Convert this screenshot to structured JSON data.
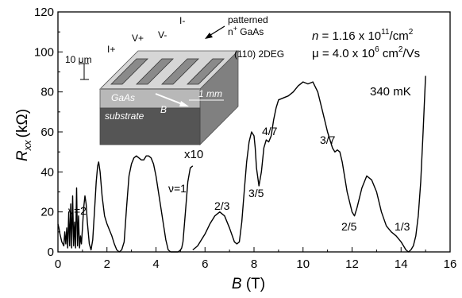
{
  "chart_data": {
    "type": "line",
    "xlabel_var": "B",
    "xlabel_unit": "(T)",
    "ylabel_var": "R",
    "ylabel_sub": "xx",
    "ylabel_unit": "(kΩ)",
    "xlim": [
      0,
      16
    ],
    "ylim": [
      0,
      120
    ],
    "xticks": [
      0,
      2,
      4,
      6,
      8,
      10,
      12,
      14,
      16
    ],
    "yticks": [
      0,
      20,
      40,
      60,
      80,
      100,
      120
    ],
    "grid": false,
    "series": [
      {
        "scale_label": "x10",
        "x": [
          0.0,
          0.04,
          0.08,
          0.12,
          0.16,
          0.2,
          0.24,
          0.28,
          0.32,
          0.36,
          0.4,
          0.44,
          0.48,
          0.52,
          0.56,
          0.6,
          0.64,
          0.68,
          0.72,
          0.76,
          0.8,
          0.84,
          0.88,
          0.92,
          0.96,
          1.0,
          1.05,
          1.1,
          1.15,
          1.2,
          1.28,
          1.35,
          1.42,
          1.5,
          1.56,
          1.62,
          1.66,
          1.72,
          1.8,
          1.9,
          2.0,
          2.1,
          2.2,
          2.3,
          2.4,
          2.5,
          2.6,
          2.7,
          2.8,
          2.9,
          3.0,
          3.1,
          3.2,
          3.3,
          3.4,
          3.5,
          3.6,
          3.7,
          3.8,
          3.9,
          4.0,
          4.1,
          4.2,
          4.3,
          4.4,
          4.5,
          4.6,
          4.7,
          4.8,
          4.9,
          5.0,
          5.05,
          5.1,
          5.2,
          5.3,
          5.4,
          5.5
        ],
        "y": [
          14,
          12,
          9,
          7,
          5,
          4,
          3,
          10,
          4,
          12,
          2,
          20,
          3,
          24,
          2,
          28,
          3,
          15,
          2,
          32,
          3,
          18,
          2,
          8,
          4,
          12,
          22,
          28,
          24,
          15,
          4,
          1,
          6,
          22,
          35,
          43,
          45,
          40,
          28,
          18,
          14,
          11,
          8,
          4,
          1,
          0,
          1,
          5,
          22,
          38,
          44,
          47,
          48,
          47,
          46,
          46,
          48,
          48,
          47,
          44,
          38,
          30,
          22,
          14,
          6,
          1,
          0,
          0,
          0,
          0,
          1,
          2,
          5,
          20,
          35,
          42,
          43
        ]
      },
      {
        "scale_label": "",
        "x": [
          5.5,
          5.6,
          5.7,
          5.8,
          5.9,
          6.0,
          6.2,
          6.4,
          6.6,
          6.8,
          7.0,
          7.2,
          7.3,
          7.4,
          7.5,
          7.6,
          7.7,
          7.8,
          7.9,
          8.0,
          8.05,
          8.1,
          8.2,
          8.3,
          8.4,
          8.5,
          8.6,
          8.7,
          8.8,
          8.9,
          9.0,
          9.2,
          9.4,
          9.6,
          9.8,
          10.0,
          10.2,
          10.4,
          10.6,
          10.8,
          11.0,
          11.2,
          11.3,
          11.4,
          11.5,
          11.6,
          11.8,
          12.0,
          12.1,
          12.2,
          12.4,
          12.6,
          12.8,
          13.0,
          13.2,
          13.4,
          13.6,
          13.8,
          14.0,
          14.1,
          14.2,
          14.3,
          14.4,
          14.5,
          14.6,
          14.7,
          14.8,
          14.9,
          15.0
        ],
        "y": [
          1,
          2,
          3,
          5,
          7,
          9,
          14,
          18,
          20,
          18,
          12,
          5,
          4,
          5,
          15,
          30,
          45,
          55,
          60,
          58,
          52,
          42,
          33,
          40,
          52,
          56,
          55,
          58,
          66,
          72,
          76,
          77,
          78,
          80,
          83,
          85,
          84,
          85,
          80,
          70,
          60,
          52,
          50,
          51,
          50,
          45,
          30,
          20,
          18,
          22,
          32,
          38,
          36,
          30,
          20,
          13,
          10,
          8,
          5,
          3,
          1,
          0,
          1,
          3,
          8,
          18,
          35,
          60,
          88
        ]
      }
    ],
    "filling_factors": [
      "ν=2",
      "ν=1",
      "2/3",
      "3/5",
      "4/7",
      "3/7",
      "2/5",
      "1/3"
    ],
    "temperature": "340 mK",
    "density_var": "n",
    "density_value": " = 1.16 x 10",
    "density_exp": "11",
    "density_unit": "/cm",
    "density_unit_exp": "2",
    "mobility_var": "μ",
    "mobility_value": " = 4.0 x 10",
    "mobility_exp": "6",
    "mobility_unit": " cm",
    "mobility_unit_exp": "2",
    "mobility_unit_tail": "/Vs"
  },
  "inset": {
    "lead_labels": [
      "I+",
      "V+",
      "V-",
      "I-"
    ],
    "patterned_line1": "patterned",
    "patterned_line2_prefix": "n",
    "patterned_line2_sup": "+",
    "patterned_line2_suffix": " GaAs",
    "twodeg_label": "(110) 2DEG",
    "thickness_label": "10 μm",
    "gaas_label": "GaAs",
    "substrate_label": "substrate",
    "field_label": "B",
    "length_label": "1 mm"
  }
}
